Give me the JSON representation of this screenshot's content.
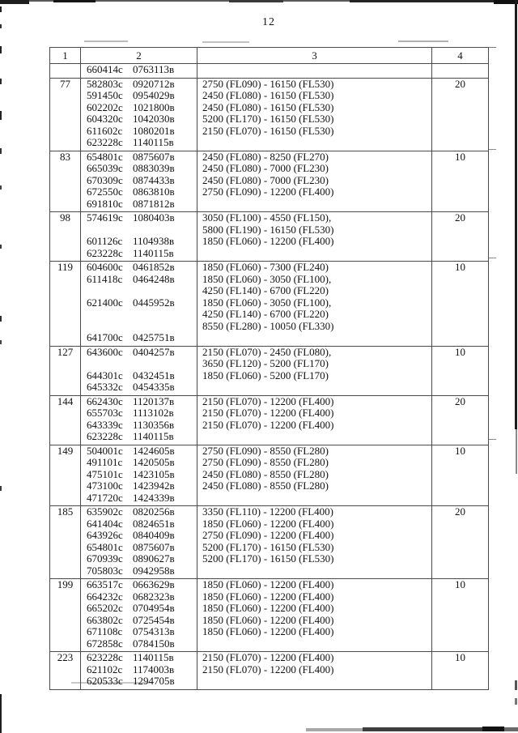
{
  "page": {
    "number": "12"
  },
  "ink_color": "#121212",
  "table": {
    "headers": [
      "1",
      "2",
      "3",
      "4"
    ],
    "rows": [
      {
        "num": "",
        "col2": [
          "660414с 0763113в"
        ],
        "col3": [],
        "col4": ""
      },
      {
        "num": "77",
        "col2": [
          "582803с 0920712в",
          "591450с 0954029в",
          "602202с 1021800в",
          "604320с 1042030в",
          "611602с 1080201в",
          "623228с 1140115в"
        ],
        "col3": [
          "2750 (FL090) - 16150 (FL530)",
          "2450 (FL080) - 16150 (FL530)",
          "2450 (FL080) - 16150 (FL530)",
          "5200 (FL170) - 16150 (FL530)",
          "2150 (FL070) - 16150 (FL530)"
        ],
        "col4": "20"
      },
      {
        "num": "83",
        "col2": [
          "654801с 0875607в",
          "665039с 0883039в",
          "670309с 0874433в",
          "672550с 0863810в",
          "691810с 0871812в"
        ],
        "col3": [
          "2450 (FL080) - 8250 (FL270)",
          "2450 (FL080) - 7000 (FL230)",
          "2450 (FL080) - 7000 (FL230)",
          "2750 (FL090) - 12200 (FL400)"
        ],
        "col4": "10"
      },
      {
        "num": "98",
        "col2": [
          "574619с 1080403в",
          "",
          "601126с 1104938в",
          "623228с 1140115в"
        ],
        "col3": [
          "3050 (FL100) - 4550 (FL150),",
          "5800 (FL190) - 16150 (FL530)",
          "1850 (FL060) - 12200 (FL400)"
        ],
        "col4": "20"
      },
      {
        "num": "119",
        "col2": [
          "604600с 0461852в",
          "611418с 0464248в",
          "",
          "621400с 0445952в",
          "",
          "",
          "641700с 0425751в"
        ],
        "col3": [
          "1850 (FL060) - 7300 (FL240)",
          "1850 (FL060) - 3050 (FL100),",
          "4250 (FL140) - 6700 (FL220)",
          "1850 (FL060) - 3050 (FL100),",
          "4250 (FL140) - 6700 (FL220)",
          "8550 (FL280) - 10050 (FL330)"
        ],
        "col4": "10"
      },
      {
        "num": "127",
        "col2": [
          "643600с 0404257в",
          "",
          "644301с 0432451в",
          "645332с 0454335в"
        ],
        "col3": [
          "2150 (FL070) - 2450 (FL080),",
          "3650 (FL120) - 5200 (FL170)",
          "1850 (FL060) - 5200 (FL170)"
        ],
        "col4": "10"
      },
      {
        "num": "144",
        "col2": [
          "662430с 1120137в",
          "655703с 1113102в",
          "643339с 1130356в",
          "623228с 1140115в"
        ],
        "col3": [
          "2150 (FL070) - 12200 (FL400)",
          "2150 (FL070) - 12200 (FL400)",
          "2150 (FL070) - 12200 (FL400)"
        ],
        "col4": "20"
      },
      {
        "num": "149",
        "col2": [
          "504001с 1424605в",
          "491101с 1420505в",
          "475101с 1423105в",
          "473100с 1423942в",
          "471720с 1424339в"
        ],
        "col3": [
          "2750 (FL090) - 8550 (FL280)",
          "2750 (FL090) - 8550 (FL280)",
          "2450 (FL080) - 8550 (FL280)",
          "2450 (FL080) - 8550 (FL280)"
        ],
        "col4": "10"
      },
      {
        "num": "185",
        "col2": [
          "635902с 0820256в",
          "641404с 0824651в",
          "643926с 0840409в",
          "654801с 0875607в",
          "670939с 0890627в",
          "705803с 0942958в"
        ],
        "col3": [
          "3350 (FL110) - 12200 (FL400)",
          "1850 (FL060) - 12200 (FL400)",
          "2750 (FL090) - 12200 (FL400)",
          "5200 (FL170) - 16150 (FL530)",
          "5200 (FL170) - 16150 (FL530)"
        ],
        "col4": "20"
      },
      {
        "num": "199",
        "col2": [
          "663517с 0663629в",
          "664232с 0682323в",
          "665202с 0704954в",
          "663802с 0725454в",
          "671108с 0754313в",
          "672858с 0784150в"
        ],
        "col3": [
          "1850 (FL060) - 12200 (FL400)",
          "1850 (FL060) - 12200 (FL400)",
          "1850 (FL060) - 12200 (FL400)",
          "1850 (FL060) - 12200 (FL400)",
          "1850 (FL060) - 12200 (FL400)"
        ],
        "col4": "10"
      },
      {
        "num": "223",
        "col2": [
          "623228с 1140115в",
          "621102с 1174003в",
          "620533с 1294705в"
        ],
        "col3": [
          "2150 (FL070) - 12200 (FL400)",
          "2150 (FL070) - 12200 (FL400)"
        ],
        "col4": "10"
      }
    ]
  }
}
